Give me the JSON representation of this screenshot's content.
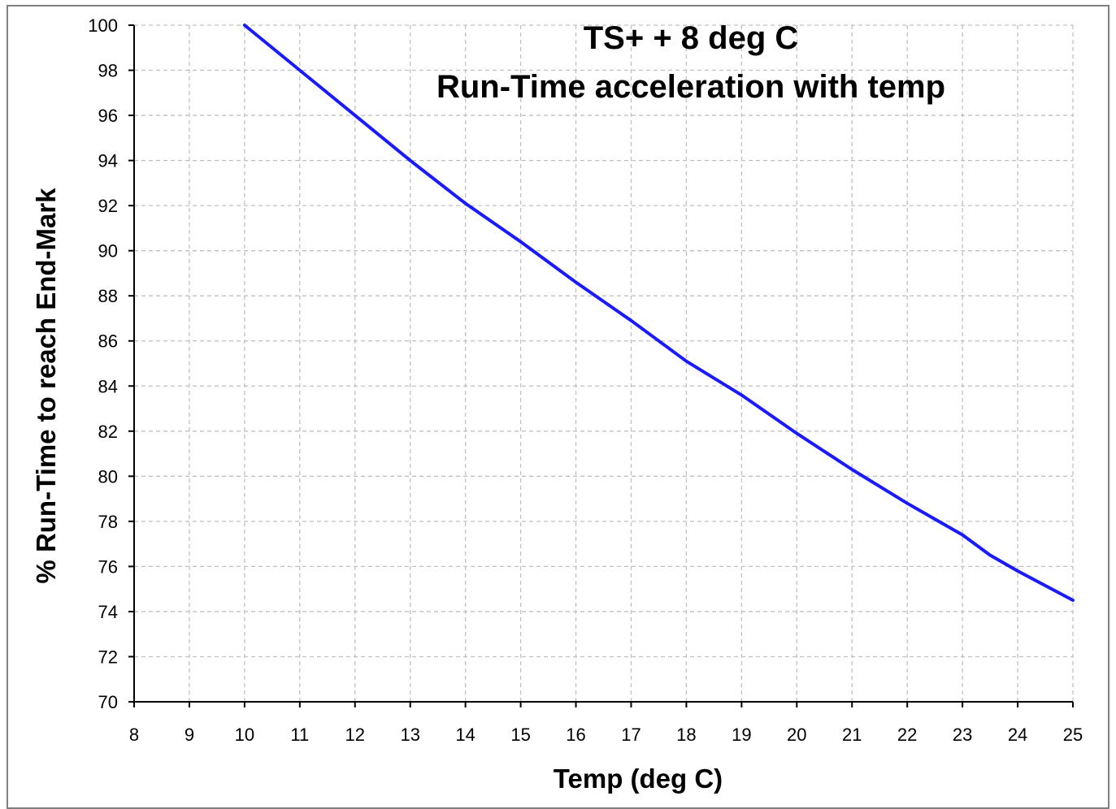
{
  "chart_data": {
    "type": "line",
    "title_lines": [
      "TS+ + 8 deg C",
      "Run-Time acceleration with temp"
    ],
    "xlabel": "Temp (deg C)",
    "ylabel": "% Run-Time to reach End-Mark",
    "xlim": [
      8,
      25
    ],
    "ylim": [
      70,
      100
    ],
    "x_ticks": [
      "8",
      "9",
      "10",
      "11",
      "12",
      "13",
      "14",
      "15",
      "16",
      "17",
      "18",
      "19",
      "20",
      "21",
      "22",
      "23",
      "24",
      "25"
    ],
    "y_ticks": [
      "70",
      "72",
      "74",
      "76",
      "78",
      "80",
      "82",
      "84",
      "86",
      "88",
      "90",
      "92",
      "94",
      "96",
      "98",
      "100"
    ],
    "grid": true,
    "legend": "none",
    "series": [
      {
        "color": "#1a1aff",
        "x": [
          10,
          11,
          12,
          13,
          14,
          15,
          16,
          17,
          18,
          19,
          20,
          21,
          22,
          23,
          23.5,
          24,
          25
        ],
        "y": [
          100,
          98.0,
          96.0,
          94.0,
          92.1,
          90.4,
          88.6,
          86.9,
          85.1,
          83.6,
          81.9,
          80.3,
          78.8,
          77.4,
          76.5,
          75.8,
          74.5
        ]
      }
    ]
  }
}
